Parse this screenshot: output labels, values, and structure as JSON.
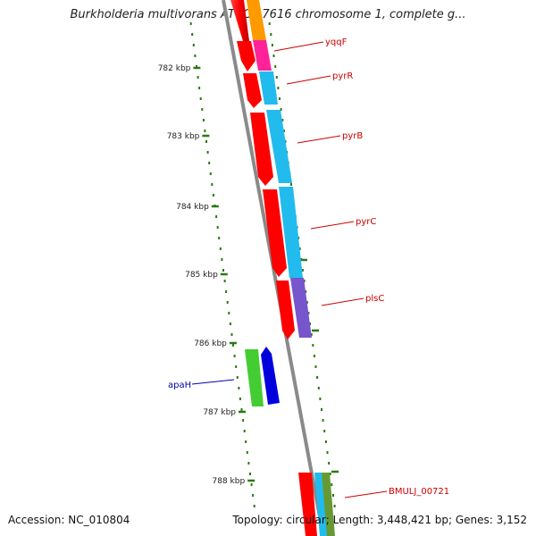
{
  "title": "Burkholderia multivorans ATCC 17616 chromosome 1, complete g...",
  "accession_text": "Accession: NC_010804",
  "summary_text": "Topology: circular; Length: 3,448,421 bp; Genes: 3,152",
  "ruler": {
    "color": "#2a7a12",
    "ticks": [
      "782 kbp",
      "783 kbp",
      "784 kbp",
      "785 kbp",
      "786 kbp",
      "787 kbp",
      "788 kbp"
    ]
  },
  "genes": [
    {
      "label": "yqqF",
      "color": "#cc0000"
    },
    {
      "label": "pyrR",
      "color": "#cc0000"
    },
    {
      "label": "pyrB",
      "color": "#cc0000"
    },
    {
      "label": "pyrC",
      "color": "#cc0000"
    },
    {
      "label": "plsC",
      "color": "#cc0000"
    },
    {
      "label": "apaH",
      "color": "#0000aa"
    },
    {
      "label": "BMULJ_00721",
      "color": "#cc0000"
    }
  ],
  "colors": {
    "backbone": "#8a8a8a",
    "cds_red": "#ff0000",
    "orange": "#ff9900",
    "magenta": "#ff2299",
    "cyan": "#22bbee",
    "purple": "#7755cc",
    "green": "#44cc33",
    "blue": "#0000dd",
    "olive": "#669933"
  }
}
